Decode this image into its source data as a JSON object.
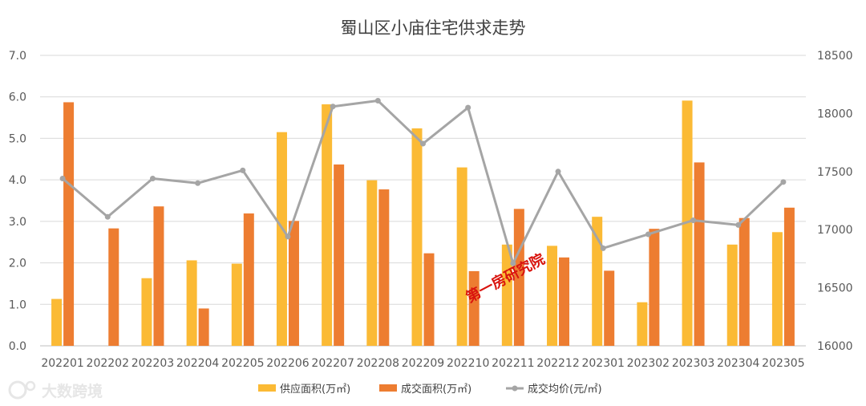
{
  "chart_data": {
    "type": "bar",
    "title": "蜀山区小庙住宅供求走势",
    "categories": [
      "202201",
      "202202",
      "202203",
      "202204",
      "202205",
      "202206",
      "202207",
      "202208",
      "202209",
      "202210",
      "202211",
      "202212",
      "202301",
      "202302",
      "202303",
      "202304",
      "202305"
    ],
    "series": [
      {
        "name": "供应面积(万㎡)",
        "type": "bar",
        "axis": "left",
        "color": "#FBBA35",
        "values": [
          1.13,
          0,
          1.63,
          2.06,
          1.98,
          5.15,
          5.82,
          3.99,
          5.24,
          4.3,
          2.44,
          2.41,
          3.11,
          1.05,
          5.91,
          2.44,
          2.74
        ]
      },
      {
        "name": "成交面积(万㎡)",
        "type": "bar",
        "axis": "right-side-bar",
        "color": "#ED7D31",
        "values": [
          5.87,
          2.83,
          3.36,
          0.9,
          3.19,
          3.01,
          4.37,
          3.77,
          2.23,
          1.8,
          3.3,
          2.13,
          1.81,
          2.82,
          4.42,
          3.08,
          3.33
        ]
      },
      {
        "name": "成交均价(元/㎡)",
        "type": "line",
        "axis": "right",
        "color": "#A5A5A5",
        "values": [
          17440,
          17110,
          17440,
          17400,
          17510,
          16940,
          18060,
          18110,
          17740,
          18050,
          16710,
          17500,
          16840,
          16960,
          17080,
          17040,
          17410
        ]
      }
    ],
    "y_left": {
      "min": 0,
      "max": 7,
      "step": 1,
      "ticks": [
        "0.0",
        "1.0",
        "2.0",
        "3.0",
        "4.0",
        "5.0",
        "6.0",
        "7.0"
      ]
    },
    "y_right": {
      "min": 16000,
      "max": 18500,
      "step": 500,
      "ticks": [
        "16000",
        "16500",
        "17000",
        "17500",
        "18000",
        "18500"
      ]
    },
    "grid": true,
    "legend_position": "bottom"
  },
  "watermark": "第一房研究院",
  "logo_text": "大数跨境"
}
